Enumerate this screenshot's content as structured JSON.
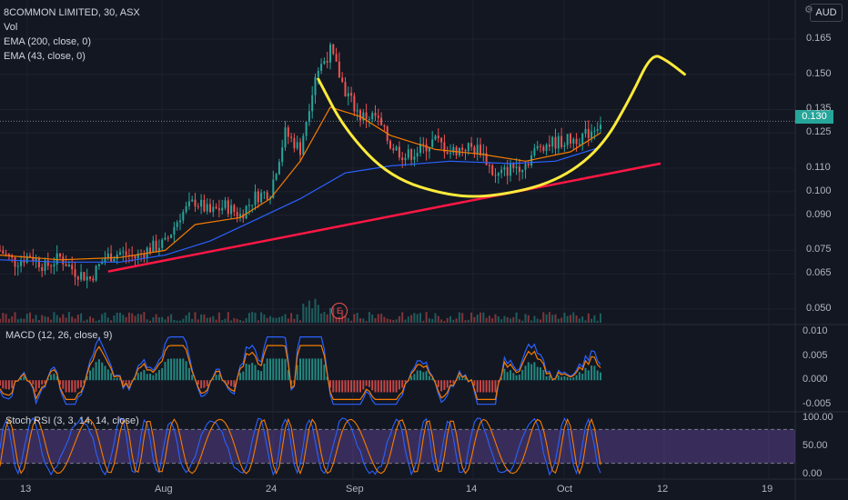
{
  "legend": {
    "symbol": "8COMMON LIMITED, 30, ASX",
    "vol": "Vol",
    "ema200": "EMA (200, close, 0)",
    "ema43": "EMA (43, close, 0)"
  },
  "panes": {
    "macd_label": "MACD (12, 26, close, 9)",
    "stoch_label": "Stoch RSI (3, 3, 14, 14, close)"
  },
  "currency": "AUD",
  "event_badge": "E",
  "colors": {
    "background": "#131722",
    "up": "#26a69a",
    "down": "#ef5350",
    "ema_fast": "#f57c00",
    "ema_slow": "#2962ff",
    "annotation_yellow": "#ffeb3b",
    "annotation_red": "#ff1744",
    "stoch_band": "#7e57c2"
  },
  "chart_data": [
    {
      "type": "candlestick",
      "title": "8COMMON LIMITED, 30, ASX",
      "price_axis_ticks": [
        "0.165",
        "0.150",
        "0.135",
        "0.125",
        "0.110",
        "0.100",
        "0.090",
        "0.075",
        "0.065",
        "0.050"
      ],
      "last_price": "0.130",
      "x_ticks": [
        "13",
        "Aug",
        "24",
        "Sep",
        "14",
        "Oct",
        "12",
        "19"
      ],
      "price_path": [
        {
          "t": 0,
          "p": 0.075
        },
        {
          "t": 5,
          "p": 0.07
        },
        {
          "t": 10,
          "p": 0.073
        },
        {
          "t": 15,
          "p": 0.068
        },
        {
          "t": 20,
          "p": 0.072
        },
        {
          "t": 25,
          "p": 0.066
        },
        {
          "t": 30,
          "p": 0.063
        },
        {
          "t": 35,
          "p": 0.072
        },
        {
          "t": 40,
          "p": 0.074
        },
        {
          "t": 45,
          "p": 0.072
        },
        {
          "t": 50,
          "p": 0.076
        },
        {
          "t": 55,
          "p": 0.078
        },
        {
          "t": 60,
          "p": 0.09
        },
        {
          "t": 65,
          "p": 0.096
        },
        {
          "t": 70,
          "p": 0.091
        },
        {
          "t": 75,
          "p": 0.094
        },
        {
          "t": 80,
          "p": 0.09
        },
        {
          "t": 85,
          "p": 0.098
        },
        {
          "t": 90,
          "p": 0.1
        },
        {
          "t": 95,
          "p": 0.125
        },
        {
          "t": 100,
          "p": 0.118
        },
        {
          "t": 105,
          "p": 0.15
        },
        {
          "t": 110,
          "p": 0.16
        },
        {
          "t": 115,
          "p": 0.143
        },
        {
          "t": 120,
          "p": 0.132
        },
        {
          "t": 125,
          "p": 0.132
        },
        {
          "t": 130,
          "p": 0.12
        },
        {
          "t": 135,
          "p": 0.115
        },
        {
          "t": 140,
          "p": 0.118
        },
        {
          "t": 145,
          "p": 0.122
        },
        {
          "t": 150,
          "p": 0.117
        },
        {
          "t": 155,
          "p": 0.119
        },
        {
          "t": 160,
          "p": 0.118
        },
        {
          "t": 165,
          "p": 0.106
        },
        {
          "t": 170,
          "p": 0.11
        },
        {
          "t": 175,
          "p": 0.112
        },
        {
          "t": 180,
          "p": 0.12
        },
        {
          "t": 185,
          "p": 0.121
        },
        {
          "t": 190,
          "p": 0.122
        },
        {
          "t": 195,
          "p": 0.124
        },
        {
          "t": 200,
          "p": 0.13
        }
      ],
      "ema_fast_path": [
        {
          "t": 0,
          "p": 0.073
        },
        {
          "t": 20,
          "p": 0.071
        },
        {
          "t": 40,
          "p": 0.072
        },
        {
          "t": 55,
          "p": 0.075
        },
        {
          "t": 65,
          "p": 0.086
        },
        {
          "t": 80,
          "p": 0.089
        },
        {
          "t": 90,
          "p": 0.097
        },
        {
          "t": 100,
          "p": 0.113
        },
        {
          "t": 110,
          "p": 0.136
        },
        {
          "t": 120,
          "p": 0.132
        },
        {
          "t": 130,
          "p": 0.124
        },
        {
          "t": 145,
          "p": 0.118
        },
        {
          "t": 160,
          "p": 0.116
        },
        {
          "t": 175,
          "p": 0.113
        },
        {
          "t": 190,
          "p": 0.117
        },
        {
          "t": 200,
          "p": 0.125
        }
      ],
      "ema_slow_path": [
        {
          "t": 0,
          "p": 0.071
        },
        {
          "t": 20,
          "p": 0.07
        },
        {
          "t": 40,
          "p": 0.07
        },
        {
          "t": 55,
          "p": 0.073
        },
        {
          "t": 70,
          "p": 0.079
        },
        {
          "t": 85,
          "p": 0.088
        },
        {
          "t": 100,
          "p": 0.097
        },
        {
          "t": 115,
          "p": 0.108
        },
        {
          "t": 130,
          "p": 0.111
        },
        {
          "t": 150,
          "p": 0.113
        },
        {
          "t": 170,
          "p": 0.112
        },
        {
          "t": 185,
          "p": 0.113
        },
        {
          "t": 200,
          "p": 0.119
        }
      ],
      "drawings": {
        "trend_line": {
          "from": {
            "t": 36,
            "p": 0.066
          },
          "to": {
            "t": 220,
            "p": 0.112
          }
        },
        "cup_curve": [
          {
            "t": 106,
            "p": 0.148
          },
          {
            "t": 115,
            "p": 0.126
          },
          {
            "t": 130,
            "p": 0.106
          },
          {
            "t": 150,
            "p": 0.098
          },
          {
            "t": 165,
            "p": 0.098
          },
          {
            "t": 185,
            "p": 0.104
          },
          {
            "t": 200,
            "p": 0.118
          },
          {
            "t": 210,
            "p": 0.14
          },
          {
            "t": 217,
            "p": 0.159
          },
          {
            "t": 222,
            "p": 0.156
          },
          {
            "t": 228,
            "p": 0.15
          }
        ]
      }
    },
    {
      "type": "bar",
      "title": "MACD (12, 26, close, 9)",
      "y_ticks": [
        "0.010",
        "0.005",
        "0.000",
        "-0.005"
      ],
      "ylim": [
        -0.006,
        0.011
      ]
    },
    {
      "type": "line",
      "title": "Stoch RSI (3, 3, 14, 14, close)",
      "y_ticks": [
        "100.00",
        "50.00",
        "0.00"
      ],
      "band": [
        20,
        80
      ],
      "ylim": [
        0,
        100
      ]
    }
  ]
}
